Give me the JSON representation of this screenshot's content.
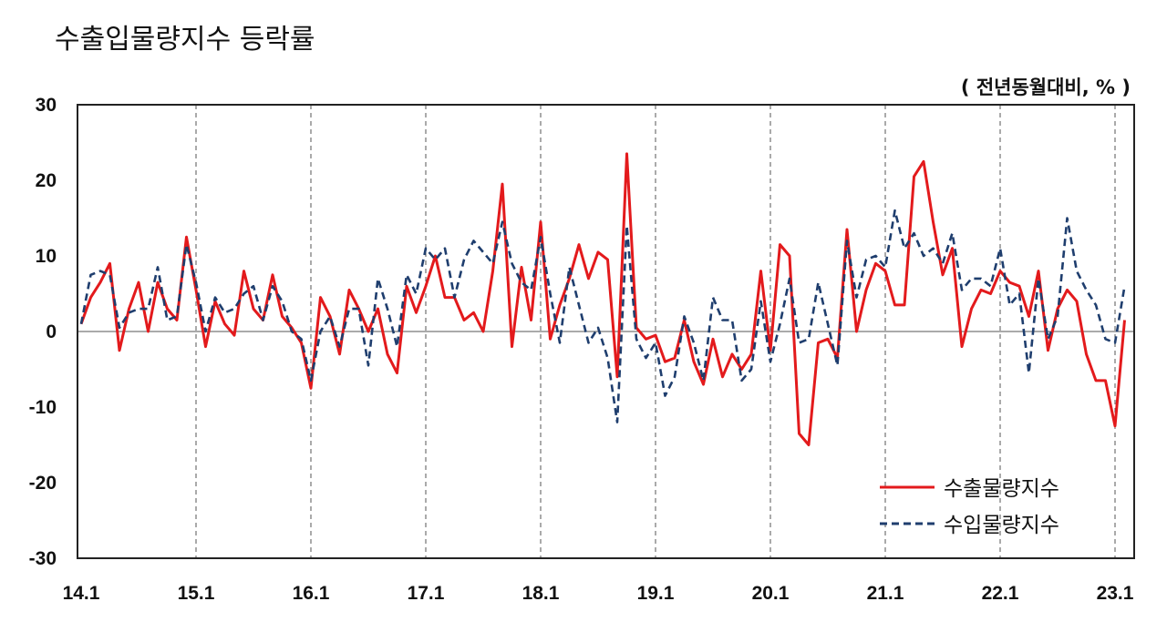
{
  "page": {
    "title": "수출입물량지수 등락률",
    "unit": "( 전년동월대비, % )"
  },
  "chart_data": {
    "type": "line",
    "title": "수출입물량지수 등락률",
    "unit_label": "( 전년동월대비, % )",
    "x_start": "2014-01",
    "x_end": "2023-03",
    "x_tick_labels": [
      "14.1",
      "15.1",
      "16.1",
      "17.1",
      "18.1",
      "19.1",
      "20.1",
      "21.1",
      "22.1",
      "23.1"
    ],
    "ylim": [
      -30,
      30
    ],
    "y_ticks": [
      30,
      20,
      10,
      0,
      -10,
      -20,
      -30
    ],
    "vertical_gridlines": "dashed at each January",
    "legend_position": "bottom-right",
    "series": [
      {
        "name": "수출물량지수",
        "color": "#e31a1c",
        "style": "solid",
        "values": [
          1.0,
          4.5,
          6.5,
          9.0,
          -2.5,
          3.0,
          6.5,
          0.0,
          6.5,
          3.0,
          1.5,
          12.5,
          5.5,
          -2.0,
          4.0,
          1.0,
          -0.5,
          8.0,
          3.0,
          1.5,
          7.5,
          2.0,
          0.5,
          -1.5,
          -7.5,
          4.5,
          2.0,
          -3.0,
          5.5,
          3.0,
          0.0,
          3.0,
          -3.0,
          -5.5,
          6.0,
          2.5,
          6.0,
          10.0,
          4.5,
          4.5,
          1.5,
          2.5,
          0.0,
          8.0,
          19.5,
          -2.0,
          8.5,
          1.5,
          14.5,
          -1.0,
          3.5,
          7.0,
          11.5,
          7.0,
          10.5,
          9.5,
          -6.0,
          23.5,
          0.5,
          -1.0,
          -0.5,
          -4.0,
          -3.5,
          1.5,
          -4.0,
          -7.0,
          -1.0,
          -6.0,
          -3.0,
          -5.0,
          -3.0,
          8.0,
          -2.5,
          11.5,
          10.0,
          -13.5,
          -15.0,
          -1.5,
          -1.0,
          -3.5,
          13.5,
          0.0,
          5.5,
          9.0,
          8.0,
          3.5,
          3.5,
          20.5,
          22.5,
          14.5,
          7.5,
          11.0,
          -2.0,
          3.0,
          5.5,
          5.0,
          8.0,
          6.5,
          6.0,
          2.0,
          8.0,
          -2.5,
          3.0,
          5.5,
          4.0,
          -3.0,
          -6.5,
          -6.5,
          -12.5,
          1.5
        ]
      },
      {
        "name": "수입물량지수",
        "color": "#1f3e6e",
        "style": "dashed",
        "values": [
          1.0,
          7.5,
          8.0,
          7.5,
          0.5,
          2.5,
          3.0,
          3.0,
          8.5,
          1.5,
          2.0,
          11.5,
          6.5,
          0.0,
          4.5,
          2.5,
          3.0,
          5.0,
          6.0,
          1.5,
          6.0,
          4.0,
          0.0,
          -1.0,
          -6.5,
          0.0,
          2.0,
          -2.0,
          3.0,
          3.0,
          -4.5,
          7.0,
          3.0,
          -2.0,
          7.5,
          5.0,
          11.0,
          9.5,
          11.0,
          4.5,
          9.5,
          12.0,
          10.5,
          9.0,
          14.5,
          9.0,
          6.5,
          5.5,
          12.5,
          5.0,
          -1.5,
          8.5,
          3.5,
          -1.5,
          0.5,
          -3.5,
          -12.0,
          14.0,
          -1.0,
          -3.5,
          -1.5,
          -8.5,
          -6.0,
          2.0,
          -1.5,
          -6.5,
          4.5,
          1.5,
          1.5,
          -6.5,
          -5.0,
          4.0,
          -4.0,
          1.0,
          7.0,
          -1.5,
          -1.0,
          6.5,
          1.0,
          -4.5,
          12.0,
          4.5,
          9.5,
          10.0,
          8.5,
          16.0,
          11.0,
          13.0,
          10.0,
          11.0,
          9.0,
          13.0,
          5.5,
          7.0,
          7.0,
          6.0,
          11.0,
          3.5,
          5.0,
          -5.5,
          7.0,
          -1.0,
          2.0,
          15.0,
          8.0,
          5.5,
          3.5,
          -1.0,
          -1.5,
          6.0
        ]
      }
    ]
  }
}
